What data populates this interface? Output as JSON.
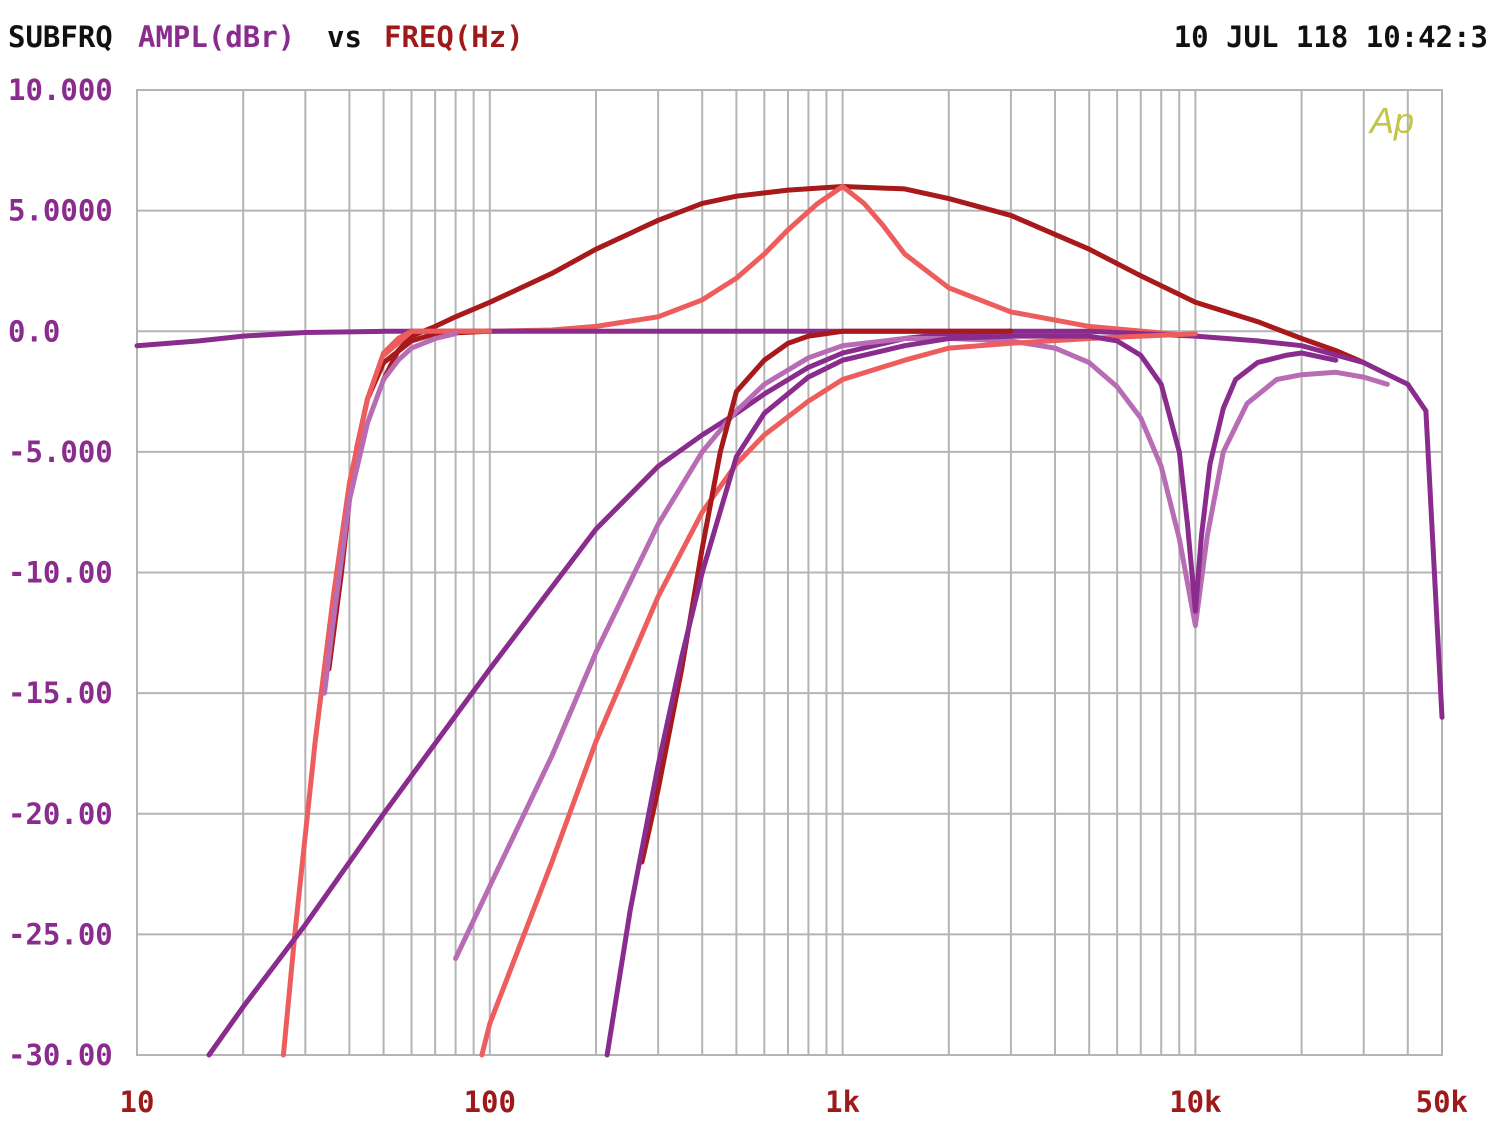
{
  "header": {
    "prefix": "SUBFRQ",
    "y_quantity": "AMPL(dBr)",
    "vs": "vs",
    "x_quantity": "FREQ(Hz)",
    "timestamp": "10 JUL 118 10:42:3",
    "logo": "Ap"
  },
  "colors": {
    "background": "#ffffff",
    "grid": "#b4b4b4",
    "y_labels": "#8a2c8e",
    "x_labels": "#9e1a1a",
    "title_text": "#111111",
    "logo": "#c4c44a"
  },
  "chart_data": {
    "type": "line",
    "title": "SUBFRQ AMPL(dBr) vs FREQ(Hz)",
    "xlabel": "FREQ(Hz)",
    "ylabel": "AMPL(dBr)",
    "x_scale": "log",
    "xlim": [
      10,
      50000
    ],
    "ylim": [
      -30,
      10
    ],
    "grid": true,
    "legend": "none",
    "x_ticks": [
      {
        "value": 10,
        "label": "10"
      },
      {
        "value": 100,
        "label": "100"
      },
      {
        "value": 1000,
        "label": "1k"
      },
      {
        "value": 10000,
        "label": "10k"
      },
      {
        "value": 50000,
        "label": "50k"
      }
    ],
    "y_ticks": [
      {
        "value": 10,
        "label": "10.000"
      },
      {
        "value": 5,
        "label": "5.0000"
      },
      {
        "value": 0,
        "label": "0.0"
      },
      {
        "value": -5,
        "label": "-5.000"
      },
      {
        "value": -10,
        "label": "-10.00"
      },
      {
        "value": -15,
        "label": "-15.00"
      },
      {
        "value": -20,
        "label": "-20.00"
      },
      {
        "value": -25,
        "label": "-25.00"
      },
      {
        "value": -30,
        "label": "-30.00"
      }
    ],
    "series": [
      {
        "color": "#a8191c",
        "points": [
          [
            50,
            -2
          ],
          [
            55,
            -0.8
          ],
          [
            60,
            -0.2
          ],
          [
            70,
            0.2
          ],
          [
            80,
            0.6
          ],
          [
            100,
            1.2
          ],
          [
            150,
            2.4
          ],
          [
            200,
            3.4
          ],
          [
            300,
            4.6
          ],
          [
            400,
            5.3
          ],
          [
            500,
            5.6
          ],
          [
            700,
            5.85
          ],
          [
            1000,
            6
          ],
          [
            1500,
            5.9
          ],
          [
            2000,
            5.5
          ],
          [
            3000,
            4.8
          ],
          [
            5000,
            3.4
          ],
          [
            7000,
            2.3
          ],
          [
            10000,
            1.2
          ],
          [
            15000,
            0.4
          ],
          [
            20000,
            -0.3
          ],
          [
            25000,
            -0.8
          ],
          [
            30000,
            -1.3
          ]
        ]
      },
      {
        "color": "#ee5d5d",
        "points": [
          [
            50,
            -1
          ],
          [
            60,
            0
          ],
          [
            100,
            0
          ],
          [
            150,
            0.05
          ],
          [
            200,
            0.2
          ],
          [
            300,
            0.6
          ],
          [
            400,
            1.3
          ],
          [
            500,
            2.2
          ],
          [
            600,
            3.2
          ],
          [
            700,
            4.2
          ],
          [
            850,
            5.3
          ],
          [
            1000,
            6
          ],
          [
            1150,
            5.3
          ],
          [
            1300,
            4.4
          ],
          [
            1500,
            3.2
          ],
          [
            2000,
            1.8
          ],
          [
            3000,
            0.8
          ],
          [
            5000,
            0.2
          ],
          [
            10000,
            -0.2
          ]
        ]
      },
      {
        "color": "#8a2c8e",
        "points": [
          [
            10,
            -0.6
          ],
          [
            15,
            -0.4
          ],
          [
            20,
            -0.2
          ],
          [
            30,
            -0.05
          ],
          [
            50,
            0
          ],
          [
            100,
            0
          ],
          [
            1000,
            0
          ],
          [
            5000,
            0
          ],
          [
            10000,
            -0.2
          ],
          [
            15000,
            -0.4
          ],
          [
            20000,
            -0.6
          ],
          [
            30000,
            -1.3
          ],
          [
            40000,
            -2.2
          ],
          [
            45000,
            -3.3
          ],
          [
            50000,
            -16
          ]
        ]
      },
      {
        "color": "#a8191c",
        "points": [
          [
            35,
            -14
          ],
          [
            38,
            -10
          ],
          [
            40,
            -7
          ],
          [
            42,
            -4.8
          ],
          [
            45,
            -2.8
          ],
          [
            50,
            -1.3
          ],
          [
            60,
            -0.4
          ],
          [
            70,
            -0.1
          ],
          [
            100,
            0
          ]
        ]
      },
      {
        "color": "#ee5d5d",
        "points": [
          [
            26,
            -30
          ],
          [
            28,
            -25
          ],
          [
            32,
            -17
          ],
          [
            36,
            -11
          ],
          [
            40,
            -6.3
          ],
          [
            45,
            -2.8
          ],
          [
            50,
            -0.9
          ],
          [
            55,
            -0.3
          ],
          [
            60,
            0
          ],
          [
            100,
            0
          ]
        ]
      },
      {
        "color": "#b86cb4",
        "points": [
          [
            34,
            -15
          ],
          [
            36,
            -12
          ],
          [
            40,
            -7
          ],
          [
            45,
            -3.8
          ],
          [
            50,
            -2
          ],
          [
            55,
            -1.2
          ],
          [
            60,
            -0.7
          ],
          [
            70,
            -0.3
          ],
          [
            80,
            -0.1
          ]
        ]
      },
      {
        "color": "#8a2c8e",
        "points": [
          [
            16,
            -30
          ],
          [
            20,
            -28
          ],
          [
            30,
            -24.6
          ],
          [
            50,
            -20
          ],
          [
            100,
            -14
          ],
          [
            200,
            -8.2
          ],
          [
            300,
            -5.6
          ],
          [
            400,
            -4.3
          ],
          [
            500,
            -3.4
          ],
          [
            600,
            -2.6
          ],
          [
            800,
            -1.5
          ],
          [
            1000,
            -0.9
          ],
          [
            1500,
            -0.3
          ],
          [
            2000,
            -0.1
          ],
          [
            3000,
            0
          ]
        ]
      },
      {
        "color": "#b86cb4",
        "points": [
          [
            80,
            -26
          ],
          [
            100,
            -23
          ],
          [
            150,
            -17.6
          ],
          [
            200,
            -13.3
          ],
          [
            300,
            -8
          ],
          [
            400,
            -5
          ],
          [
            500,
            -3.3
          ],
          [
            600,
            -2.2
          ],
          [
            800,
            -1.1
          ],
          [
            1000,
            -0.6
          ],
          [
            1500,
            -0.3
          ],
          [
            2000,
            -0.3
          ],
          [
            3000,
            -0.4
          ],
          [
            4000,
            -0.7
          ],
          [
            5000,
            -1.3
          ],
          [
            6000,
            -2.3
          ],
          [
            7000,
            -3.6
          ],
          [
            8000,
            -5.6
          ],
          [
            9000,
            -8.6
          ],
          [
            10000,
            -12.2
          ],
          [
            10800,
            -8.5
          ],
          [
            12000,
            -5
          ],
          [
            14000,
            -3
          ],
          [
            17000,
            -2
          ],
          [
            20000,
            -1.8
          ],
          [
            25000,
            -1.7
          ],
          [
            30000,
            -1.9
          ],
          [
            35000,
            -2.2
          ]
        ]
      },
      {
        "color": "#ee5d5d",
        "points": [
          [
            95,
            -30
          ],
          [
            100,
            -28.7
          ],
          [
            150,
            -22
          ],
          [
            200,
            -17
          ],
          [
            300,
            -11
          ],
          [
            400,
            -7.5
          ],
          [
            500,
            -5.5
          ],
          [
            600,
            -4.3
          ],
          [
            800,
            -2.9
          ],
          [
            1000,
            -2
          ],
          [
            1500,
            -1.2
          ],
          [
            2000,
            -0.7
          ],
          [
            3000,
            -0.5
          ],
          [
            5000,
            -0.3
          ],
          [
            10000,
            -0.1
          ]
        ]
      },
      {
        "color": "#a8191c",
        "points": [
          [
            270,
            -22
          ],
          [
            300,
            -19
          ],
          [
            350,
            -14
          ],
          [
            400,
            -9
          ],
          [
            450,
            -5
          ],
          [
            500,
            -2.5
          ],
          [
            600,
            -1.2
          ],
          [
            700,
            -0.5
          ],
          [
            800,
            -0.2
          ],
          [
            1000,
            0
          ],
          [
            3000,
            0
          ]
        ]
      },
      {
        "color": "#8a2c8e",
        "points": [
          [
            215,
            -30
          ],
          [
            250,
            -24
          ],
          [
            300,
            -18
          ],
          [
            350,
            -13.5
          ],
          [
            400,
            -10
          ],
          [
            500,
            -5.2
          ],
          [
            600,
            -3.4
          ],
          [
            800,
            -1.9
          ],
          [
            1000,
            -1.2
          ],
          [
            1500,
            -0.6
          ],
          [
            2000,
            -0.3
          ],
          [
            3000,
            -0.2
          ],
          [
            5000,
            -0.2
          ],
          [
            6000,
            -0.4
          ],
          [
            7000,
            -1
          ],
          [
            8000,
            -2.2
          ],
          [
            9000,
            -5
          ],
          [
            9500,
            -8
          ],
          [
            10000,
            -11.6
          ],
          [
            10400,
            -8.5
          ],
          [
            11000,
            -5.5
          ],
          [
            12000,
            -3.2
          ],
          [
            13000,
            -2
          ],
          [
            15000,
            -1.3
          ],
          [
            18000,
            -1
          ],
          [
            20000,
            -0.9
          ],
          [
            25000,
            -1.2
          ]
        ]
      }
    ]
  }
}
